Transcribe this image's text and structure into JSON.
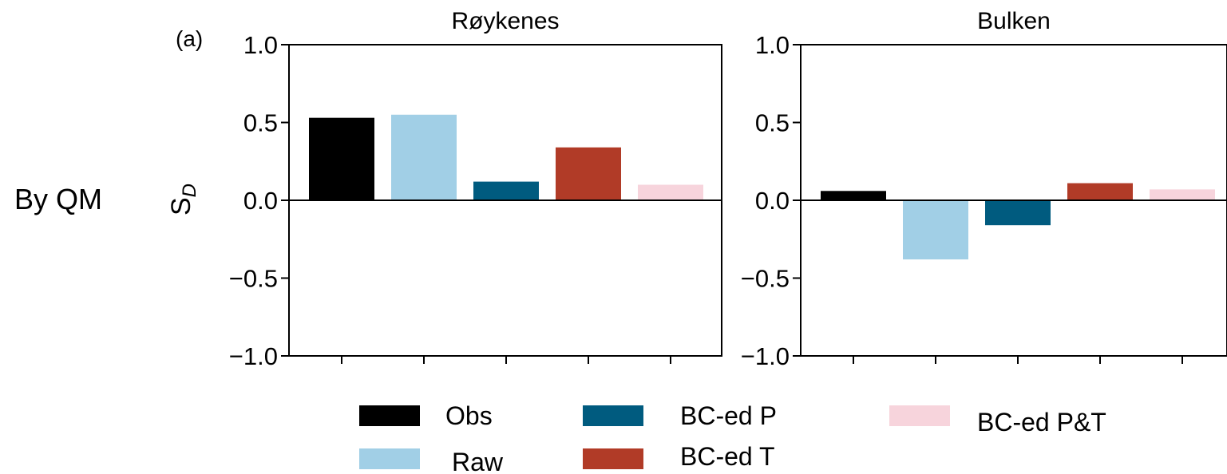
{
  "row_label": "By QM",
  "panel_tag": "(a)",
  "ylabel": "S",
  "ylabel_sub": "D",
  "legend": [
    {
      "label": "Obs",
      "color": "#000000"
    },
    {
      "label": "Raw",
      "color": "#a1cfe6"
    },
    {
      "label": "BC-ed P",
      "color": "#005b7f"
    },
    {
      "label": "BC-ed T",
      "color": "#b13b27"
    },
    {
      "label": "BC-ed P&T",
      "color": "#f7d4dc"
    }
  ],
  "chart_data": [
    {
      "type": "bar",
      "title": "Røykenes",
      "categories": [
        "Obs",
        "Raw",
        "BC-ed P",
        "BC-ed T",
        "BC-ed P&T"
      ],
      "values": [
        0.53,
        0.55,
        0.12,
        0.34,
        0.1
      ],
      "ylim": [
        -1.0,
        1.0
      ],
      "yticks": [
        1.0,
        0.5,
        0.0,
        -0.5,
        -1.0
      ],
      "ytick_labels": [
        "1.0",
        "0.5",
        "0.0",
        "−0.5",
        "−1.0"
      ],
      "colors": [
        "#000000",
        "#a1cfe6",
        "#005b7f",
        "#b13b27",
        "#f7d4dc"
      ],
      "grid": false
    },
    {
      "type": "bar",
      "title": "Bulken",
      "categories": [
        "Obs",
        "Raw",
        "BC-ed P",
        "BC-ed T",
        "BC-ed P&T"
      ],
      "values": [
        0.06,
        -0.38,
        -0.16,
        0.11,
        0.07
      ],
      "ylim": [
        -1.0,
        1.0
      ],
      "yticks": [
        1.0,
        0.5,
        0.0,
        -0.5,
        -1.0
      ],
      "ytick_labels": [
        "1.0",
        "0.5",
        "0.0",
        "−0.5",
        "−1.0"
      ],
      "colors": [
        "#000000",
        "#a1cfe6",
        "#005b7f",
        "#b13b27",
        "#f7d4dc"
      ],
      "grid": false
    }
  ]
}
